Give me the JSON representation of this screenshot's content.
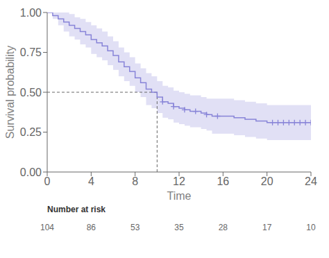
{
  "chart_data": {
    "type": "survival",
    "xlabel": "Time",
    "ylabel": "Survival probability",
    "x": [
      0,
      0.5,
      1,
      1.5,
      2,
      2.5,
      3,
      3.5,
      4,
      4.5,
      5,
      5.5,
      6,
      6.5,
      7,
      7.5,
      8,
      8.5,
      9,
      9.5,
      10,
      10.5,
      11,
      11.5,
      12,
      12.5,
      13,
      13.5,
      14,
      14.5,
      15,
      15.5,
      16,
      17,
      18,
      19,
      20,
      20.5,
      21,
      21.5,
      22,
      22.5,
      23,
      23.5,
      24
    ],
    "values": [
      1.0,
      0.98,
      0.96,
      0.94,
      0.92,
      0.9,
      0.88,
      0.86,
      0.83,
      0.81,
      0.79,
      0.76,
      0.73,
      0.69,
      0.66,
      0.63,
      0.59,
      0.56,
      0.52,
      0.5,
      0.47,
      0.44,
      0.43,
      0.41,
      0.4,
      0.39,
      0.38,
      0.38,
      0.37,
      0.36,
      0.35,
      0.35,
      0.35,
      0.34,
      0.33,
      0.32,
      0.31,
      0.31,
      0.31,
      0.31,
      0.31,
      0.31,
      0.31,
      0.31,
      0.31
    ],
    "ci_upper": [
      1.0,
      1.0,
      1.0,
      1.0,
      0.99,
      0.97,
      0.96,
      0.94,
      0.92,
      0.9,
      0.88,
      0.85,
      0.82,
      0.78,
      0.75,
      0.72,
      0.68,
      0.65,
      0.62,
      0.6,
      0.57,
      0.54,
      0.53,
      0.51,
      0.5,
      0.49,
      0.48,
      0.48,
      0.47,
      0.46,
      0.46,
      0.46,
      0.46,
      0.45,
      0.44,
      0.43,
      0.42,
      0.42,
      0.42,
      0.42,
      0.42,
      0.42,
      0.42,
      0.42,
      0.42
    ],
    "ci_lower": [
      1.0,
      0.96,
      0.92,
      0.88,
      0.85,
      0.83,
      0.8,
      0.78,
      0.74,
      0.72,
      0.7,
      0.67,
      0.64,
      0.6,
      0.57,
      0.54,
      0.5,
      0.47,
      0.42,
      0.4,
      0.37,
      0.34,
      0.33,
      0.31,
      0.3,
      0.29,
      0.28,
      0.28,
      0.27,
      0.26,
      0.24,
      0.24,
      0.24,
      0.23,
      0.22,
      0.21,
      0.2,
      0.2,
      0.2,
      0.2,
      0.2,
      0.2,
      0.2,
      0.2,
      0.2
    ],
    "censor_x": [
      10.5,
      11.5,
      12.5,
      13.5,
      14.5,
      15.5,
      20.5,
      21.0,
      21.5,
      22.0,
      22.5,
      23.0,
      23.5,
      24.0
    ],
    "censor_values": [
      0.44,
      0.41,
      0.39,
      0.38,
      0.36,
      0.35,
      0.31,
      0.31,
      0.31,
      0.31,
      0.31,
      0.31,
      0.31,
      0.31
    ],
    "median_x": 10,
    "median_y": 0.5,
    "xlim": [
      0,
      24
    ],
    "ylim": [
      0.0,
      1.0
    ],
    "xticks": [
      0,
      4,
      8,
      12,
      16,
      20,
      24
    ],
    "yticks": [
      {
        "value": 0,
        "label": "0.00"
      },
      0.25,
      {
        "value": 0.5,
        "label": "0.50"
      },
      0.75,
      {
        "value": 1,
        "label": "1.00"
      }
    ],
    "grid": false,
    "risk_table": {
      "label": "Number at risk",
      "x": [
        0,
        4,
        8,
        12,
        16,
        20,
        24
      ],
      "counts": [
        104,
        86,
        53,
        35,
        28,
        17,
        10
      ]
    }
  }
}
